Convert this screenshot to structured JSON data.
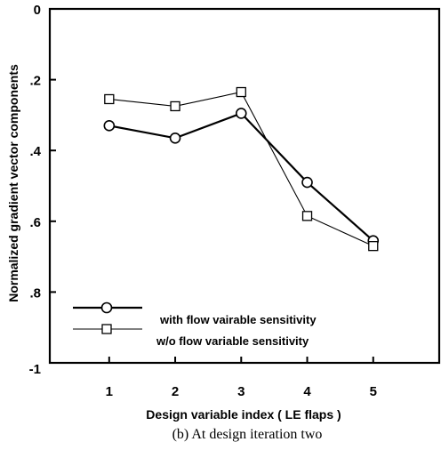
{
  "chart_data": {
    "type": "line",
    "title": "",
    "xlabel": "Design variable index ( LE flaps )",
    "ylabel": "Normalized gradient vector components",
    "caption": "(b) At design iteration two",
    "x": [
      1,
      2,
      3,
      4,
      5
    ],
    "xlim": [
      0.1,
      6.0
    ],
    "ylim": [
      -1,
      0
    ],
    "x_ticks": [
      {
        "value": 1,
        "label": "1"
      },
      {
        "value": 2,
        "label": "2"
      },
      {
        "value": 3,
        "label": "3"
      },
      {
        "value": 4,
        "label": "4"
      },
      {
        "value": 5,
        "label": "5"
      }
    ],
    "y_ticks": [
      {
        "value": 0,
        "label": "0"
      },
      {
        "value": -0.2,
        "label": ".2"
      },
      {
        "value": -0.4,
        "label": ".4"
      },
      {
        "value": -0.6,
        "label": ".6"
      },
      {
        "value": -0.8,
        "label": ".8"
      },
      {
        "value": -1,
        "label": "-1"
      }
    ],
    "grid": false,
    "legend_position": "bottom-left",
    "series": [
      {
        "name": "with flow vairable sensitivity",
        "marker": "circle",
        "line_weight": "thick",
        "values": [
          -0.33,
          -0.365,
          -0.295,
          -0.49,
          -0.655
        ]
      },
      {
        "name": "w/o flow variable sensitivity",
        "marker": "square",
        "line_weight": "thin",
        "values": [
          -0.255,
          -0.275,
          -0.235,
          -0.585,
          -0.67
        ]
      }
    ]
  }
}
